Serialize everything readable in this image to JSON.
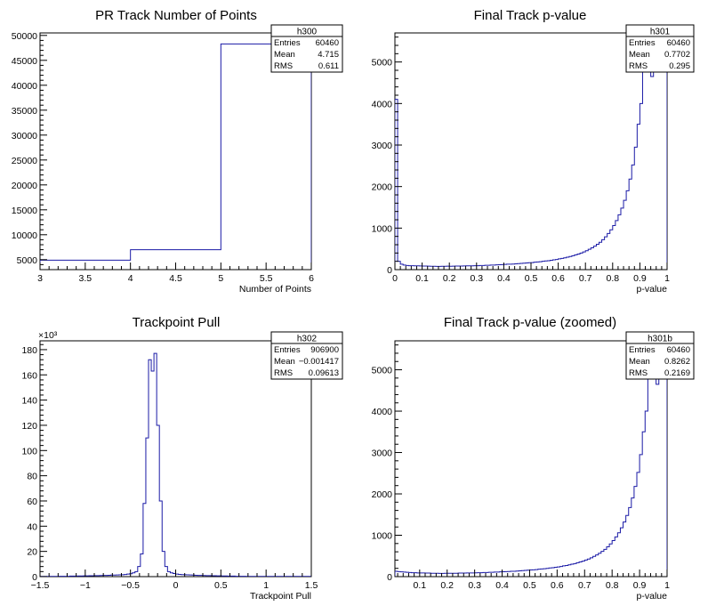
{
  "chart_data": [
    {
      "type": "histogram",
      "title": "PR Track Number of Points",
      "xlabel": "Number of Points",
      "ylabel": "",
      "xlim": [
        3,
        6
      ],
      "ylim": [
        3000,
        50500
      ],
      "x_ticks": [
        "3",
        "3.5",
        "4",
        "4.5",
        "5",
        "5.5",
        "6"
      ],
      "y_ticks": [
        "5000",
        "10000",
        "15000",
        "20000",
        "25000",
        "30000",
        "35000",
        "40000",
        "45000",
        "50000"
      ],
      "y_multiplier": "",
      "bin_edges": [
        3,
        4,
        5,
        6
      ],
      "values": [
        4900,
        7000,
        48300
      ],
      "color": "#1a1aa6",
      "stats": {
        "name": "h300",
        "entries": "60460",
        "mean": "4.715",
        "rms": "0.611"
      }
    },
    {
      "type": "histogram",
      "title": "Final Track p-value",
      "xlabel": "p-value",
      "ylabel": "",
      "xlim": [
        0,
        1
      ],
      "ylim": [
        0,
        5700
      ],
      "x_ticks": [
        "0",
        "0.1",
        "0.2",
        "0.3",
        "0.4",
        "0.5",
        "0.6",
        "0.7",
        "0.8",
        "0.9",
        "1"
      ],
      "y_ticks": [
        "0",
        "1000",
        "2000",
        "3000",
        "4000",
        "5000"
      ],
      "y_multiplier": "",
      "bin_edges_from": 0,
      "bin_edges_to": 1,
      "values": [
        4100,
        200,
        130,
        110,
        100,
        95,
        95,
        90,
        90,
        88,
        85,
        85,
        82,
        80,
        80,
        78,
        78,
        80,
        80,
        82,
        80,
        82,
        85,
        85,
        85,
        88,
        90,
        90,
        92,
        95,
        95,
        100,
        100,
        105,
        105,
        110,
        110,
        115,
        118,
        120,
        125,
        130,
        130,
        135,
        140,
        145,
        150,
        155,
        160,
        165,
        170,
        180,
        185,
        190,
        200,
        210,
        215,
        225,
        235,
        245,
        260,
        270,
        285,
        300,
        315,
        335,
        355,
        375,
        400,
        425,
        455,
        490,
        525,
        565,
        610,
        660,
        720,
        790,
        870,
        960,
        1060,
        1180,
        1320,
        1480,
        1670,
        1900,
        2180,
        2520,
        2950,
        3500,
        4000,
        5400,
        5850,
        6000,
        4650,
        5000,
        5000,
        5000,
        5000,
        5000
      ],
      "color": "#1a1aa6",
      "stats": {
        "name": "h301",
        "entries": "60460",
        "mean": "0.7702",
        "rms": "0.295"
      }
    },
    {
      "type": "histogram",
      "title": "Trackpoint Pull",
      "xlabel": "Trackpoint Pull",
      "ylabel": "",
      "xlim": [
        -1.5,
        1.5
      ],
      "ylim": [
        0,
        187
      ],
      "x_ticks": [
        "-1.5",
        "-1",
        "-0.5",
        "0",
        "0.5",
        "1",
        "1.5"
      ],
      "y_ticks": [
        "0",
        "20",
        "40",
        "60",
        "80",
        "100",
        "120",
        "140",
        "160",
        "180"
      ],
      "y_multiplier": "×10³",
      "bin_edges_from": -1.5,
      "bin_edges_to": 1.5,
      "values": [
        0.2,
        0.2,
        0.2,
        0.2,
        0.2,
        0.2,
        0.2,
        0.3,
        0.3,
        0.3,
        0.3,
        0.4,
        0.4,
        0.4,
        0.5,
        0.5,
        0.6,
        0.6,
        0.7,
        0.7,
        0.8,
        0.8,
        0.9,
        1.0,
        1.0,
        1.1,
        1.2,
        1.2,
        1.3,
        1.4,
        1.5,
        1.7,
        2.0,
        2.3,
        3,
        4,
        8,
        18,
        58,
        110,
        172,
        163,
        177,
        120,
        60,
        20,
        8,
        4,
        3,
        2.5,
        2,
        1.8,
        1.6,
        1.5,
        1.4,
        1.3,
        1.2,
        1.1,
        1.0,
        1.0,
        0.9,
        0.8,
        0.8,
        0.7,
        0.7,
        0.6,
        0.6,
        0.5,
        0.5,
        0.4,
        0.4,
        0.4,
        0.3,
        0.3,
        0.3,
        0.3,
        0.2,
        0.2,
        0.2,
        0.2,
        0.2,
        0.2,
        0.2,
        0.2,
        0.2,
        0.2,
        0.2,
        0.2,
        0.2,
        0.2,
        0.2,
        0.2,
        0.2,
        0.2,
        0.2,
        0.2,
        0.2,
        0.2,
        0.2,
        0.2
      ],
      "color": "#1a1aa6",
      "stats": {
        "name": "h302",
        "entries": "906900",
        "mean": "-0.001417",
        "rms": "0.09613"
      }
    },
    {
      "type": "histogram",
      "title": "Final Track p-value (zoomed)",
      "xlabel": "p-value",
      "ylabel": "",
      "xlim": [
        0.01,
        1
      ],
      "ylim": [
        0,
        5700
      ],
      "x_ticks": [
        "0.1",
        "0.2",
        "0.3",
        "0.4",
        "0.5",
        "0.6",
        "0.7",
        "0.8",
        "0.9",
        "1"
      ],
      "y_ticks": [
        "0",
        "1000",
        "2000",
        "3000",
        "4000",
        "5000"
      ],
      "y_multiplier": "",
      "bin_edges_from": 0.01,
      "bin_edges_to": 1,
      "values": [
        130,
        120,
        115,
        110,
        105,
        100,
        95,
        95,
        90,
        90,
        88,
        85,
        85,
        82,
        80,
        80,
        78,
        78,
        80,
        80,
        82,
        80,
        82,
        85,
        85,
        85,
        88,
        90,
        90,
        92,
        95,
        95,
        100,
        100,
        105,
        105,
        110,
        110,
        115,
        118,
        120,
        125,
        130,
        130,
        135,
        140,
        145,
        150,
        155,
        160,
        165,
        170,
        180,
        185,
        190,
        200,
        210,
        215,
        225,
        235,
        245,
        260,
        270,
        285,
        300,
        315,
        335,
        355,
        375,
        400,
        425,
        455,
        490,
        525,
        565,
        610,
        660,
        720,
        790,
        870,
        960,
        1060,
        1180,
        1320,
        1480,
        1670,
        1900,
        2180,
        2520,
        2950,
        3500,
        4000,
        5400,
        5850,
        6000,
        4650,
        5000,
        5000,
        5000
      ],
      "color": "#1a1aa6",
      "stats": {
        "name": "h301b",
        "entries": "60460",
        "mean": "0.8262",
        "rms": "0.2169"
      }
    }
  ],
  "stat_labels": {
    "entries": "Entries",
    "mean": "Mean",
    "rms": "RMS"
  }
}
